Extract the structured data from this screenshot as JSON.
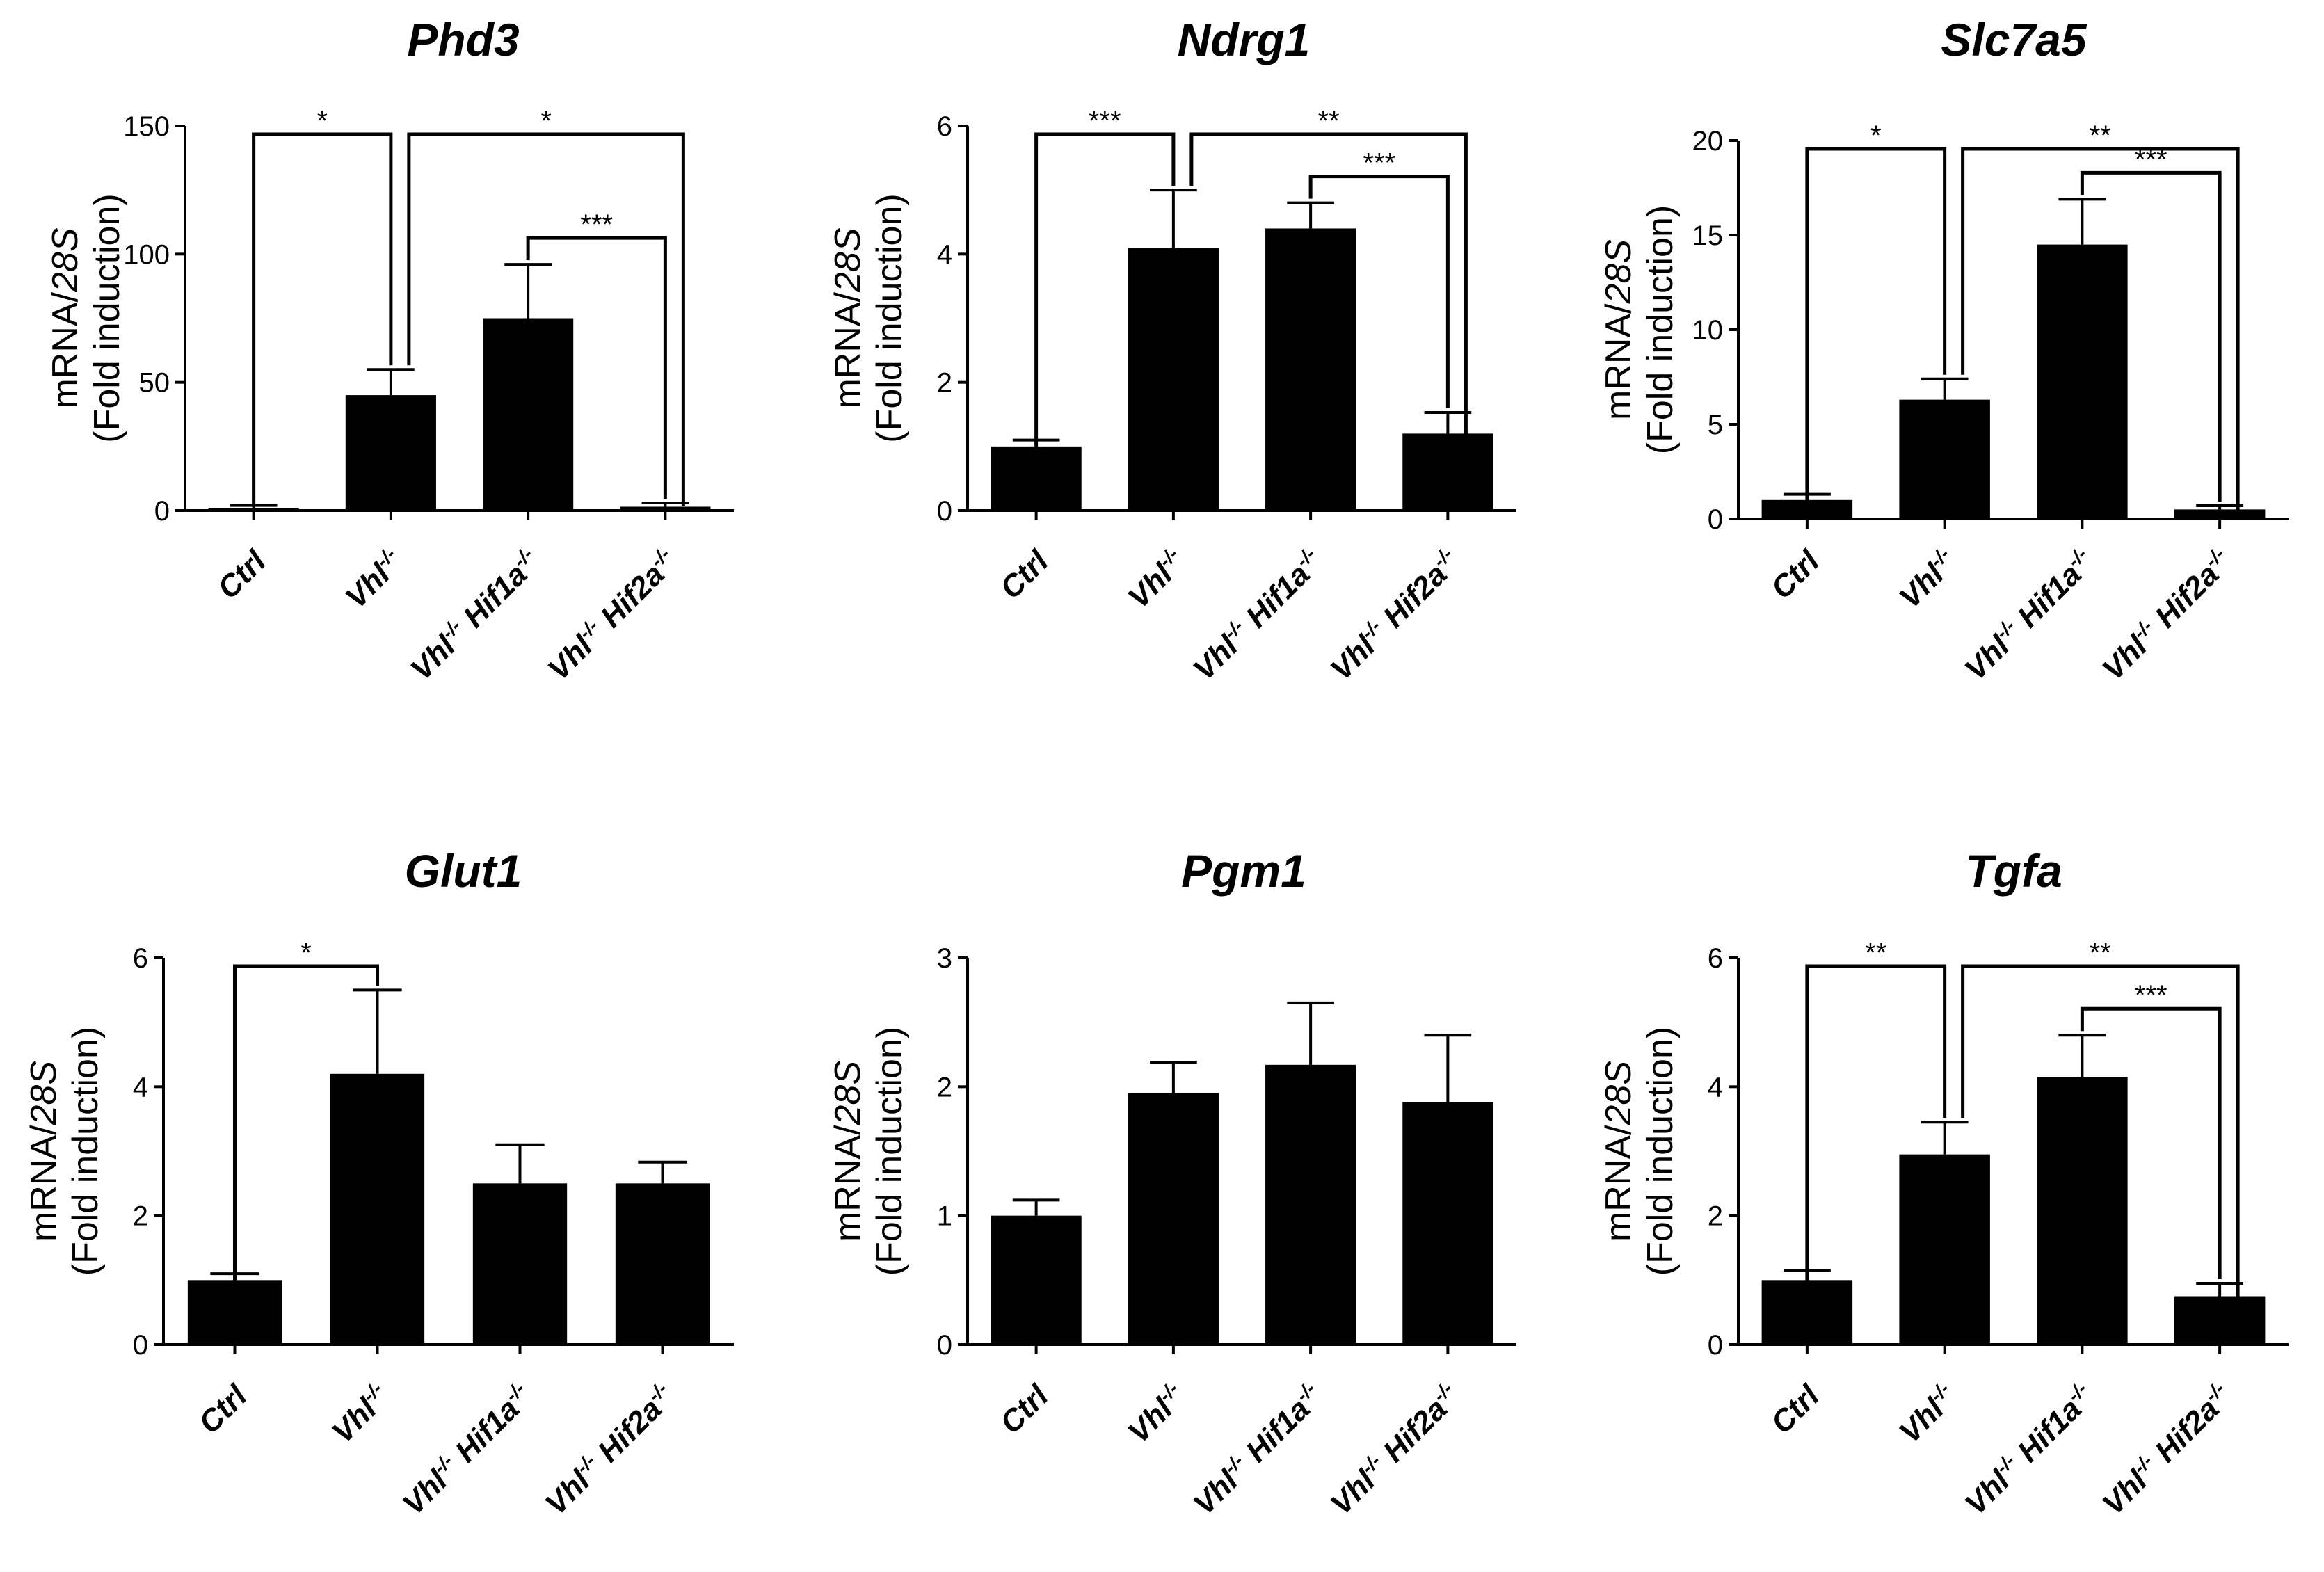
{
  "chart_data": [
    {
      "type": "bar",
      "title": "Phd3",
      "ylabel": [
        "mRNA/",
        "28S",
        "(Fold induction)"
      ],
      "ylim": [
        0,
        150
      ],
      "yticks": [
        "0",
        "50",
        "100",
        "150"
      ],
      "categories": [
        "Ctrl",
        "Vhl-/-",
        "Vhl-/- Hif1a-/-",
        "Vhl-/- Hif2a-/-"
      ],
      "values": [
        1,
        45,
        75,
        1.5
      ],
      "errors": [
        1,
        10,
        21,
        1.5
      ],
      "significance": [
        {
          "from": 0,
          "to": 1,
          "label": "*"
        },
        {
          "from": 1,
          "to": 3,
          "label": "*"
        },
        {
          "from": 2,
          "to": 3,
          "label": "***"
        }
      ]
    },
    {
      "type": "bar",
      "title": "Ndrg1",
      "ylabel": [
        "mRNA/",
        "28S",
        "(Fold induction)"
      ],
      "ylim": [
        0,
        6
      ],
      "yticks": [
        "0",
        "2",
        "4",
        "6"
      ],
      "categories": [
        "Ctrl",
        "Vhl-/-",
        "Vhl-/- Hif1a-/-",
        "Vhl-/- Hif2a-/-"
      ],
      "values": [
        1.0,
        4.1,
        4.4,
        1.2
      ],
      "errors": [
        0.1,
        0.9,
        0.4,
        0.33
      ],
      "significance": [
        {
          "from": 0,
          "to": 1,
          "label": "***"
        },
        {
          "from": 1,
          "to": 3,
          "label": "**"
        },
        {
          "from": 2,
          "to": 3,
          "label": "***"
        }
      ]
    },
    {
      "type": "bar",
      "title": "Slc7a5",
      "ylabel": [
        "mRNA/",
        "28S",
        "(Fold induction)"
      ],
      "ylim": [
        0,
        20
      ],
      "yticks": [
        "0",
        "5",
        "10",
        "15",
        "20"
      ],
      "categories": [
        "Ctrl",
        "Vhl-/-",
        "Vhl-/- Hif1a-/-",
        "Vhl-/- Hif2a-/-"
      ],
      "values": [
        1.0,
        6.3,
        14.5,
        0.5
      ],
      "errors": [
        0.3,
        1.1,
        2.4,
        0.2
      ],
      "significance": [
        {
          "from": 0,
          "to": 1,
          "label": "*"
        },
        {
          "from": 1,
          "to": 3,
          "label": "**"
        },
        {
          "from": 2,
          "to": 3,
          "label": "***"
        }
      ]
    },
    {
      "type": "bar",
      "title": "Glut1",
      "ylabel": [
        "mRNA/",
        "28S",
        "(Fold induction)"
      ],
      "ylim": [
        0,
        6
      ],
      "yticks": [
        "0",
        "2",
        "4",
        "6"
      ],
      "categories": [
        "Ctrl",
        "Vhl-/-",
        "Vhl-/- Hif1a-/-",
        "Vhl-/- Hif2a-/-"
      ],
      "values": [
        1.0,
        4.2,
        2.5,
        2.5
      ],
      "errors": [
        0.1,
        1.3,
        0.6,
        0.33
      ],
      "significance": [
        {
          "from": 0,
          "to": 1,
          "label": "*"
        }
      ]
    },
    {
      "type": "bar",
      "title": "Pgm1",
      "ylabel": [
        "mRNA/",
        "28S",
        "(Fold induction)"
      ],
      "ylim": [
        0,
        3
      ],
      "yticks": [
        "0",
        "1",
        "2",
        "3"
      ],
      "categories": [
        "Ctrl",
        "Vhl-/-",
        "Vhl-/- Hif1a-/-",
        "Vhl-/- Hif2a-/-"
      ],
      "values": [
        1.0,
        1.95,
        2.17,
        1.88
      ],
      "errors": [
        0.12,
        0.24,
        0.48,
        0.52
      ],
      "significance": []
    },
    {
      "type": "bar",
      "title": "Tgfa",
      "ylabel": [
        "mRNA/",
        "28S",
        "(Fold induction)"
      ],
      "ylim": [
        0,
        6
      ],
      "yticks": [
        "0",
        "2",
        "4",
        "6"
      ],
      "categories": [
        "Ctrl",
        "Vhl-/-",
        "Vhl-/- Hif1a-/-",
        "Vhl-/- Hif2a-/-"
      ],
      "values": [
        1.0,
        2.95,
        4.15,
        0.75
      ],
      "errors": [
        0.15,
        0.5,
        0.65,
        0.2
      ],
      "significance": [
        {
          "from": 0,
          "to": 1,
          "label": "**"
        },
        {
          "from": 1,
          "to": 3,
          "label": "**"
        },
        {
          "from": 2,
          "to": 3,
          "label": "***"
        }
      ]
    }
  ]
}
